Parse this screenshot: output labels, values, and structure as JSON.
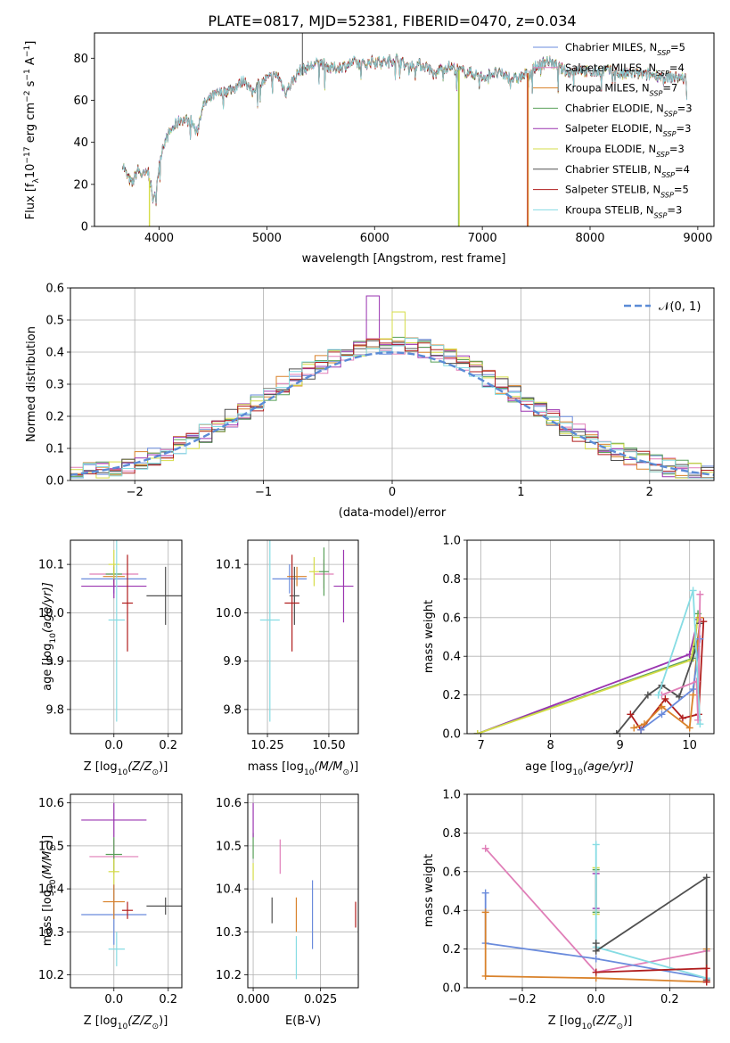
{
  "title": "PLATE=0817, MJD=52381, FIBERID=0470, z=0.034",
  "series": [
    {
      "name": "Chabrier MILES, N",
      "sub": "SSP",
      "suffix": "=5",
      "color": "#6a8bdc"
    },
    {
      "name": "Salpeter MILES, N",
      "sub": "SSP",
      "suffix": "=4",
      "color": "#e07fb8"
    },
    {
      "name": "Kroupa MILES, N",
      "sub": "SSP",
      "suffix": "=7",
      "color": "#d9822b"
    },
    {
      "name": "Chabrier ELODIE, N",
      "sub": "SSP",
      "suffix": "=3",
      "color": "#58a058"
    },
    {
      "name": "Salpeter ELODIE, N",
      "sub": "SSP",
      "suffix": "=3",
      "color": "#9a34b0"
    },
    {
      "name": "Kroupa ELODIE, N",
      "sub": "SSP",
      "suffix": "=3",
      "color": "#d6dd48"
    },
    {
      "name": "Chabrier STELIB, N",
      "sub": "SSP",
      "suffix": "=4",
      "color": "#505050"
    },
    {
      "name": "Salpeter STELIB, N",
      "sub": "SSP",
      "suffix": "=5",
      "color": "#b01d1d"
    },
    {
      "name": "Kroupa STELIB, N",
      "sub": "SSP",
      "suffix": "=3",
      "color": "#86dce3"
    }
  ],
  "chart_data": [
    {
      "id": "spectrum",
      "type": "line",
      "xlabel": "wavelength [Angstrom, rest frame]",
      "ylabel_parts": [
        "Flux [f",
        "λ",
        "10",
        "−17",
        " erg cm",
        "−2",
        " s",
        "−1",
        " A",
        "−1",
        "]"
      ],
      "xlim": [
        3400,
        9150
      ],
      "ylim": [
        0,
        92
      ],
      "xticks": [
        4000,
        5000,
        6000,
        7000,
        8000,
        9000
      ],
      "yticks": [
        0,
        20,
        40,
        60,
        80
      ],
      "spectrum_knots": [
        [
          3660,
          30
        ],
        [
          3700,
          24
        ],
        [
          3750,
          20
        ],
        [
          3800,
          27
        ],
        [
          3850,
          24
        ],
        [
          3900,
          26
        ],
        [
          3950,
          11
        ],
        [
          3990,
          25
        ],
        [
          4030,
          38
        ],
        [
          4100,
          45
        ],
        [
          4200,
          51
        ],
        [
          4300,
          50
        ],
        [
          4350,
          44
        ],
        [
          4400,
          57
        ],
        [
          4500,
          62
        ],
        [
          4600,
          64
        ],
        [
          4700,
          66
        ],
        [
          4800,
          70
        ],
        [
          4860,
          63
        ],
        [
          4900,
          67
        ],
        [
          5000,
          70
        ],
        [
          5100,
          72
        ],
        [
          5175,
          64
        ],
        [
          5250,
          70
        ],
        [
          5300,
          74
        ],
        [
          5400,
          76
        ],
        [
          5500,
          78
        ],
        [
          5600,
          75
        ],
        [
          5700,
          76
        ],
        [
          5800,
          78
        ],
        [
          5900,
          77
        ],
        [
          6000,
          79
        ],
        [
          6100,
          78
        ],
        [
          6200,
          80
        ],
        [
          6300,
          76
        ],
        [
          6400,
          77
        ],
        [
          6500,
          76
        ],
        [
          6563,
          71
        ],
        [
          6600,
          75
        ],
        [
          6700,
          76
        ],
        [
          6800,
          74
        ],
        [
          6900,
          73
        ],
        [
          7000,
          71
        ],
        [
          7100,
          73
        ],
        [
          7200,
          72
        ],
        [
          7300,
          70
        ],
        [
          7400,
          72
        ],
        [
          7500,
          76
        ],
        [
          7600,
          79
        ],
        [
          7700,
          76
        ],
        [
          7800,
          73
        ],
        [
          7900,
          75
        ],
        [
          8000,
          73
        ],
        [
          8100,
          74
        ],
        [
          8200,
          74
        ],
        [
          8300,
          72
        ],
        [
          8400,
          73
        ],
        [
          8500,
          72
        ],
        [
          8600,
          72
        ],
        [
          8700,
          71
        ],
        [
          8800,
          71
        ],
        [
          8900,
          70
        ]
      ],
      "dropouts": [
        {
          "series": 5,
          "x": 3910,
          "to": 0
        },
        {
          "series": 3,
          "x": 6780,
          "to": 0
        },
        {
          "series": 5,
          "x": 6785,
          "to": 0
        },
        {
          "series": 7,
          "x": 7420,
          "to": 0
        },
        {
          "series": 2,
          "x": 7425,
          "to": 0
        }
      ],
      "legend": "top-right"
    },
    {
      "id": "residuals",
      "type": "step",
      "xlabel": "(data-model)/error",
      "ylabel": "Normed distribution",
      "xlim": [
        -2.5,
        2.5
      ],
      "ylim": [
        0,
        0.6
      ],
      "xticks": [
        -2,
        -1,
        0,
        1,
        2
      ],
      "yticks": [
        0,
        0.1,
        0.2,
        0.3,
        0.4,
        0.5,
        0.6
      ],
      "bin_width": 0.1,
      "bin_start": -2.5,
      "normal_curve": {
        "name": "𝒩(0, 1)",
        "mu": 0,
        "sigma": 1,
        "color": "#5b8bd6"
      },
      "legend": "top-right",
      "grid": true
    },
    {
      "id": "age_vs_Z",
      "type": "errorbar",
      "xlabel_parts": [
        "Z [log",
        "10",
        "(Z/Z",
        "⊙",
        ")]"
      ],
      "ylabel_parts": [
        "age  [log",
        "10",
        "(age/yr)]"
      ],
      "xlim": [
        -0.16,
        0.25
      ],
      "ylim": [
        9.75,
        10.15
      ],
      "xticks": [
        0.0,
        0.2
      ],
      "yticks": [
        9.8,
        9.9,
        10.0,
        10.1
      ],
      "points": [
        {
          "s": 0,
          "x": 0.0,
          "y": 10.07,
          "xerr": 0.12,
          "yerr": 0.03
        },
        {
          "s": 1,
          "x": 0.0,
          "y": 10.08,
          "xerr": 0.09,
          "yerr": 0.02
        },
        {
          "s": 2,
          "x": 0.0,
          "y": 10.075,
          "xerr": 0.04,
          "yerr": 0.02
        },
        {
          "s": 3,
          "x": 0.0,
          "y": 10.08,
          "xerr": 0.03,
          "yerr": 0.015
        },
        {
          "s": 4,
          "x": 0.0,
          "y": 10.055,
          "xerr": 0.12,
          "yerr": 0.025
        },
        {
          "s": 5,
          "x": 0.0,
          "y": 10.1,
          "xerr": 0.02,
          "yerr": 0.03
        },
        {
          "s": 6,
          "x": 0.19,
          "y": 10.035,
          "xerr": 0.07,
          "yerr": 0.06
        },
        {
          "s": 7,
          "x": 0.05,
          "y": 10.02,
          "xerr": 0.02,
          "yerr": 0.1
        },
        {
          "s": 8,
          "x": 0.01,
          "y": 9.985,
          "xerr": 0.03,
          "yerr": 0.21
        }
      ],
      "grid": true
    },
    {
      "id": "age_vs_mass",
      "type": "errorbar",
      "xlabel_parts": [
        "mass [log",
        "10",
        "(M/M",
        "⊙",
        ")]"
      ],
      "xlim": [
        10.17,
        10.62
      ],
      "ylim": [
        9.75,
        10.15
      ],
      "xticks": [
        10.25,
        10.5
      ],
      "yticks": [
        9.8,
        9.9,
        10.0,
        10.1
      ],
      "points": [
        {
          "s": 0,
          "x": 10.34,
          "y": 10.07,
          "xerr": 0.07,
          "yerr": 0.03
        },
        {
          "s": 1,
          "x": 10.48,
          "y": 10.08,
          "xerr": 0.04,
          "yerr": 0.03
        },
        {
          "s": 2,
          "x": 10.37,
          "y": 10.075,
          "xerr": 0.04,
          "yerr": 0.02
        },
        {
          "s": 3,
          "x": 10.48,
          "y": 10.085,
          "xerr": 0.02,
          "yerr": 0.05
        },
        {
          "s": 4,
          "x": 10.56,
          "y": 10.055,
          "xerr": 0.04,
          "yerr": 0.075
        },
        {
          "s": 5,
          "x": 10.44,
          "y": 10.085,
          "xerr": 0.02,
          "yerr": 0.03
        },
        {
          "s": 6,
          "x": 10.36,
          "y": 10.035,
          "xerr": 0.02,
          "yerr": 0.06
        },
        {
          "s": 7,
          "x": 10.35,
          "y": 10.02,
          "xerr": 0.03,
          "yerr": 0.1
        },
        {
          "s": 8,
          "x": 10.26,
          "y": 9.985,
          "xerr": 0.04,
          "yerr": 0.21
        }
      ],
      "grid": true
    },
    {
      "id": "weights_vs_age",
      "type": "line",
      "xlabel_parts": [
        "age  [log",
        "10",
        "(age/yr)]"
      ],
      "ylabel": "mass weight",
      "xlim": [
        6.8,
        10.35
      ],
      "ylim": [
        0,
        1.0
      ],
      "xticks": [
        7,
        8,
        9,
        10
      ],
      "yticks": [
        0,
        0.2,
        0.4,
        0.6,
        0.8,
        1.0
      ],
      "lines": [
        {
          "s": 4,
          "x": [
            6.95,
            10.0,
            10.12
          ],
          "y": [
            0.0,
            0.41,
            0.59
          ]
        },
        {
          "s": 3,
          "x": 6.95,
          "x_list": [
            6.95,
            10.05,
            10.12
          ],
          "y": [
            0.0,
            0.39,
            0.62
          ]
        },
        {
          "s": 5,
          "x": [
            6.95,
            10.02,
            10.12
          ],
          "y": [
            0.0,
            0.38,
            0.6
          ]
        },
        {
          "s": 6,
          "x": [
            8.95,
            9.4,
            9.6,
            9.85,
            10.1,
            10.15
          ],
          "y": [
            0.0,
            0.2,
            0.25,
            0.19,
            0.45,
            0.57
          ]
        },
        {
          "s": 7,
          "x": [
            9.15,
            9.3,
            9.65,
            9.9,
            10.13,
            10.2
          ],
          "y": [
            0.1,
            0.02,
            0.18,
            0.08,
            0.1,
            0.58
          ]
        },
        {
          "s": 2,
          "x": [
            9.2,
            9.35,
            9.6,
            10.0,
            10.05,
            10.15
          ],
          "y": [
            0.03,
            0.05,
            0.14,
            0.03,
            0.2,
            0.6
          ]
        },
        {
          "s": 0,
          "x": [
            9.3,
            9.6,
            10.05,
            10.15
          ],
          "y": [
            0.02,
            0.1,
            0.23,
            0.49
          ]
        },
        {
          "s": 1,
          "x": [
            9.6,
            10.1,
            10.12,
            10.15
          ],
          "y": [
            0.2,
            0.27,
            0.07,
            0.72
          ]
        },
        {
          "s": 8,
          "x": [
            9.55,
            10.05,
            10.15
          ],
          "y": [
            0.2,
            0.74,
            0.05
          ]
        }
      ],
      "grid": true
    },
    {
      "id": "mass_vs_Z",
      "type": "errorbar",
      "xlabel_parts": [
        "Z [log",
        "10",
        "(Z/Z",
        "⊙",
        ")]"
      ],
      "ylabel_parts": [
        "mass [log",
        "10",
        "(M/M",
        "⊙",
        ")]"
      ],
      "xlim": [
        -0.16,
        0.25
      ],
      "ylim": [
        10.17,
        10.62
      ],
      "xticks": [
        0.0,
        0.2
      ],
      "yticks": [
        10.2,
        10.3,
        10.4,
        10.5,
        10.6
      ],
      "points": [
        {
          "s": 0,
          "x": 0.0,
          "y": 10.34,
          "xerr": 0.12,
          "yerr": 0.07
        },
        {
          "s": 1,
          "x": 0.0,
          "y": 10.475,
          "xerr": 0.09,
          "yerr": 0.04
        },
        {
          "s": 2,
          "x": 0.0,
          "y": 10.37,
          "xerr": 0.04,
          "yerr": 0.04
        },
        {
          "s": 3,
          "x": 0.0,
          "y": 10.48,
          "xerr": 0.03,
          "yerr": 0.04
        },
        {
          "s": 4,
          "x": 0.0,
          "y": 10.56,
          "xerr": 0.12,
          "yerr": 0.04
        },
        {
          "s": 5,
          "x": 0.0,
          "y": 10.44,
          "xerr": 0.02,
          "yerr": 0.03
        },
        {
          "s": 6,
          "x": 0.19,
          "y": 10.36,
          "xerr": 0.07,
          "yerr": 0.02
        },
        {
          "s": 7,
          "x": 0.05,
          "y": 10.35,
          "xerr": 0.02,
          "yerr": 0.02
        },
        {
          "s": 8,
          "x": 0.01,
          "y": 10.26,
          "xerr": 0.03,
          "yerr": 0.04
        }
      ],
      "grid": true
    },
    {
      "id": "mass_vs_EBV",
      "type": "errorbar",
      "xlabel": "E(B-V)",
      "xlim": [
        -0.002,
        0.039
      ],
      "ylim": [
        10.17,
        10.62
      ],
      "xticks": [
        0.0,
        0.025
      ],
      "xtick_labels": [
        "0.000",
        "0.025"
      ],
      "yticks": [
        10.2,
        10.3,
        10.4,
        10.5,
        10.6
      ],
      "points": [
        {
          "s": 0,
          "x": 0.022,
          "y": 10.34,
          "xerr": 0,
          "yerr": 0.08
        },
        {
          "s": 1,
          "x": 0.01,
          "y": 10.475,
          "xerr": 0,
          "yerr": 0.04
        },
        {
          "s": 2,
          "x": 0.016,
          "y": 10.34,
          "xerr": 0,
          "yerr": 0.04
        },
        {
          "s": 3,
          "x": 0.0,
          "y": 10.5,
          "xerr": 0,
          "yerr": 0.03
        },
        {
          "s": 4,
          "x": 0.0,
          "y": 10.56,
          "xerr": 0,
          "yerr": 0.04
        },
        {
          "s": 5,
          "x": 0.0,
          "y": 10.44,
          "xerr": 0,
          "yerr": 0.02
        },
        {
          "s": 6,
          "x": 0.007,
          "y": 10.35,
          "xerr": 0,
          "yerr": 0.03
        },
        {
          "s": 7,
          "x": 0.038,
          "y": 10.34,
          "xerr": 0,
          "yerr": 0.03
        },
        {
          "s": 8,
          "x": 0.016,
          "y": 10.24,
          "xerr": 0,
          "yerr": 0.05
        }
      ],
      "grid": true
    },
    {
      "id": "weights_vs_Z",
      "type": "line",
      "xlabel_parts": [
        "Z [log",
        "10",
        "(Z/Z",
        "⊙",
        ")]"
      ],
      "ylabel": "mass weight",
      "xlim": [
        -0.35,
        0.32
      ],
      "ylim": [
        0,
        1.0
      ],
      "xticks": [
        -0.2,
        0.0,
        0.2
      ],
      "xtick_labels": [
        "−0.2",
        "0.0",
        "0.2"
      ],
      "yticks": [
        0,
        0.2,
        0.4,
        0.6,
        0.8,
        1.0
      ],
      "lines": [
        {
          "s": 1,
          "x": [
            -0.3,
            0.0,
            0.3
          ],
          "y": [
            0.72,
            0.08,
            0.19
          ]
        },
        {
          "s": 0,
          "x": [
            -0.3,
            -0.3,
            0.0,
            0.3
          ],
          "y": [
            0.49,
            0.23,
            0.15,
            0.05
          ]
        },
        {
          "s": 2,
          "x": [
            -0.3,
            -0.3,
            0.0,
            0.3,
            0.3
          ],
          "y": [
            0.39,
            0.06,
            0.05,
            0.03,
            0.2
          ]
        },
        {
          "s": 3,
          "x": [
            0.0,
            0.0
          ],
          "y": [
            0.61,
            0.39
          ]
        },
        {
          "s": 5,
          "x": [
            0.0,
            0.0
          ],
          "y": [
            0.62,
            0.38
          ]
        },
        {
          "s": 4,
          "x": [
            0.0,
            0.0
          ],
          "y": [
            0.59,
            0.41
          ]
        },
        {
          "s": 8,
          "x": [
            0.0,
            0.0,
            0.3
          ],
          "y": [
            0.74,
            0.21,
            0.05
          ]
        },
        {
          "s": 6,
          "x": [
            0.0,
            0.0,
            0.3,
            0.3
          ],
          "y": [
            0.23,
            0.19,
            0.57,
            0.04
          ]
        },
        {
          "s": 7,
          "x": [
            0.0,
            0.3,
            0.3
          ],
          "y": [
            0.08,
            0.1,
            0.03
          ]
        }
      ],
      "grid": true
    }
  ]
}
